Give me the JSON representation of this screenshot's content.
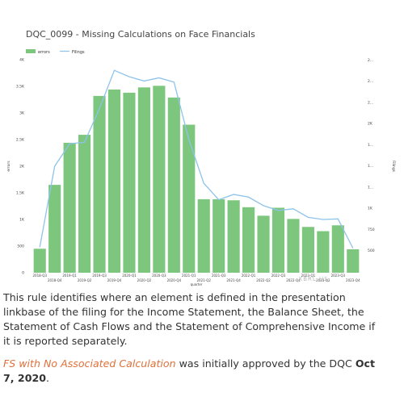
{
  "chart_data": {
    "type": "bar",
    "title": "DQC_0099 - Missing Calculations on Face Financials",
    "xlabel": "quarter",
    "ylabel": "errors",
    "y2label": "Filings",
    "legend": [
      "errors",
      "Filings"
    ],
    "legend_position": "top-left",
    "ylim": [
      0,
      4000
    ],
    "y_ticks": [
      "0",
      "500",
      "1K",
      "1.5K",
      "2K",
      "2.5K",
      "3K",
      "3.5K",
      "4K"
    ],
    "y2_ticks": [
      "500",
      "750",
      "1K",
      "1...",
      "1...",
      "1...",
      "2K",
      "2...",
      "2...",
      "2..."
    ],
    "categories": [
      "2018-Q3",
      "2018-Q4",
      "2019-Q1",
      "2019-Q2",
      "2019-Q3",
      "2019-Q4",
      "2020-Q1",
      "2020-Q2",
      "2020-Q3",
      "2020-Q4",
      "2021-Q1",
      "2021-Q2",
      "2021-Q3",
      "2021-Q4",
      "2022-Q1",
      "2022-Q2",
      "2022-Q3",
      "2022-Q4",
      "2023-Q1",
      "2023-Q2",
      "2023-Q3",
      "2023-Q4"
    ],
    "x_tick_labels_top": [
      "2018-Q3",
      "",
      "2019-Q1",
      "",
      "2019-Q3",
      "",
      "2020-Q1",
      "",
      "2020-Q3",
      "",
      "2021-Q1",
      "",
      "2021-Q3",
      "",
      "2022-Q1",
      "",
      "2022-Q3",
      "",
      "2023-Q1",
      "",
      "2023-Q3",
      ""
    ],
    "x_tick_labels_bottom": [
      "",
      "2018-Q4",
      "",
      "2019-Q2",
      "",
      "2019-Q4",
      "",
      "2020-Q2",
      "",
      "2020-Q4",
      "",
      "2021-Q2",
      "",
      "2021-Q4",
      "",
      "2022-Q2",
      "",
      "2022-Q4",
      "",
      "2023-Q2",
      "",
      "2023-Q4"
    ],
    "series": [
      {
        "name": "errors",
        "type": "bar",
        "color": "#7dc67e",
        "values": [
          450,
          1650,
          2440,
          2590,
          3320,
          3440,
          3380,
          3480,
          3510,
          3290,
          2780,
          1380,
          1380,
          1360,
          1230,
          1070,
          1220,
          1010,
          860,
          780,
          890,
          440
        ]
      },
      {
        "name": "Filings",
        "type": "line",
        "color": "#8ec3ea",
        "values": [
          480,
          2000,
          2420,
          2450,
          3080,
          3800,
          3680,
          3600,
          3660,
          3580,
          2500,
          1680,
          1370,
          1470,
          1420,
          1260,
          1170,
          1200,
          1040,
          1000,
          1010,
          460
        ]
      }
    ],
    "watermark": "XBRL US"
  },
  "text": {
    "paragraph1": "This rule identifies where an element is defined in the presentation linkbase of the filing for the Income Statement, the Balance Sheet, the Statement of Cash Flows and the Statement of Comprehensive Income if it is reported separately.",
    "link_text": "FS with No Associated Calculation",
    "paragraph2_mid": " was initially approved by the DQC ",
    "approval_date": "Oct 7, 2020",
    "paragraph2_end": "."
  }
}
